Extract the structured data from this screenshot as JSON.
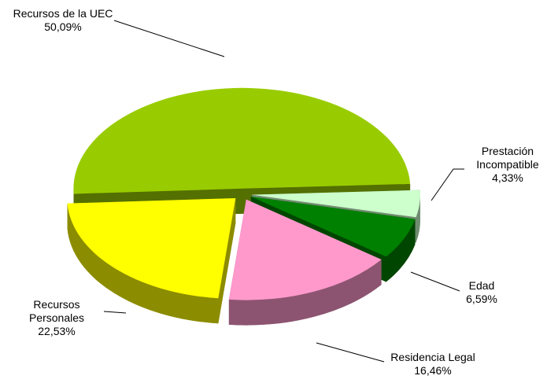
{
  "chart_data": {
    "type": "pie3d",
    "categories": [
      "Recursos de la UEC",
      "Prestación Incompatible",
      "Edad",
      "Residencia Legal",
      "Recursos Personales"
    ],
    "values": [
      50.09,
      4.33,
      6.59,
      16.46,
      22.53
    ],
    "value_labels": [
      "50,09%",
      "4,33%",
      "6,59%",
      "16,46%",
      "22,53%"
    ],
    "colors": [
      "#99cc00",
      "#ccffcc",
      "#008000",
      "#ff99cc",
      "#ffff00"
    ]
  }
}
